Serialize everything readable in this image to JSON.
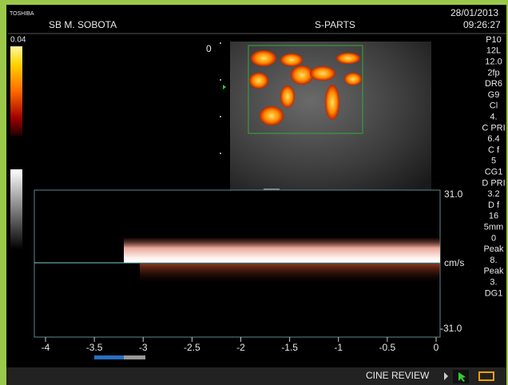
{
  "header": {
    "brand": "TOSHIBA",
    "patient": "SB M. SOBOTA",
    "preset": "S-PARTS",
    "date": "28/01/2013",
    "time": "09:26:27"
  },
  "color_scale": {
    "max": "0.04"
  },
  "image": {
    "depth_start": "0"
  },
  "parameters": [
    "P10",
    "12L",
    "12.0",
    "2fp",
    "DR6",
    "G9",
    "Cl",
    "4.",
    "C PRI",
    "6.4",
    "C f",
    "5",
    "CG1",
    "D PRI",
    "3.2",
    "D f",
    "16",
    "5mm",
    "0",
    "Peak",
    "8.",
    "Peak",
    "3.",
    "DG1"
  ],
  "doppler": {
    "velocity_max": "31.0",
    "unit": "cm/s",
    "velocity_min": "-31.0",
    "time_ticks": [
      "-4",
      "-3.5",
      "-3",
      "-2.5",
      "-2",
      "-1.5",
      "-1",
      "-0.5",
      "0"
    ]
  },
  "status": {
    "mode": "CINE REVIEW"
  }
}
